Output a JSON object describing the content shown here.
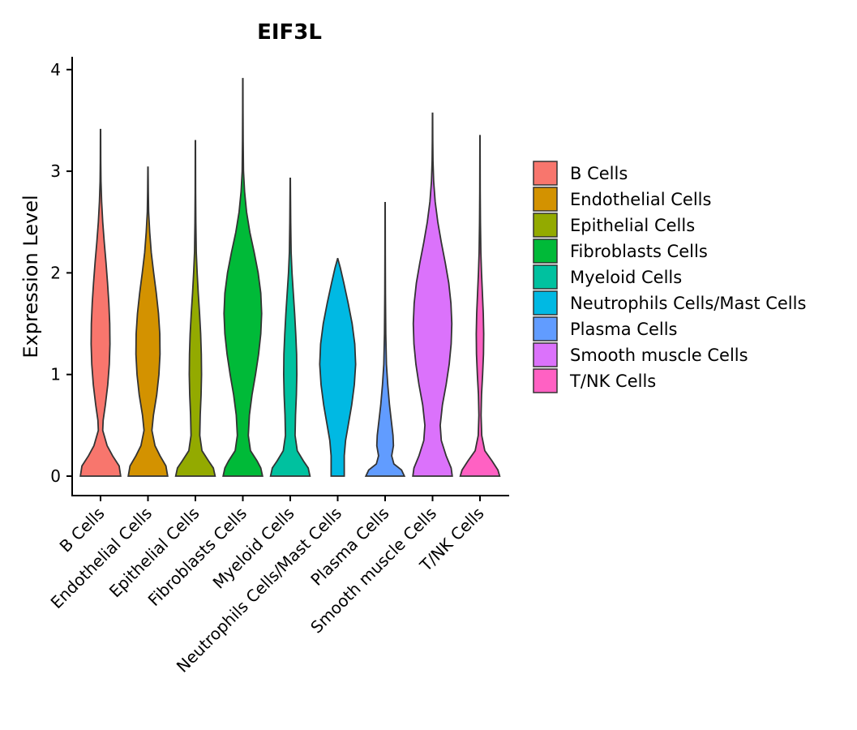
{
  "chart_data": {
    "type": "violin",
    "title": "EIF3L",
    "xlabel": "",
    "ylabel": "Expression Level",
    "ylim": [
      -0.2,
      4.1
    ],
    "yticks": [
      0,
      1,
      2,
      3,
      4
    ],
    "categories": [
      "B Cells",
      "Endothelial Cells",
      "Epithelial Cells",
      "Fibroblasts Cells",
      "Myeloid Cells",
      "Neutrophils Cells/Mast Cells",
      "Plasma Cells",
      "Smooth muscle Cells",
      "T/NK Cells"
    ],
    "colors": [
      "#F8766D",
      "#D39200",
      "#93AA00",
      "#00BA38",
      "#00C19F",
      "#00B9E3",
      "#619CFF",
      "#DB72FB",
      "#FF61C3"
    ],
    "legend": {
      "position": "right",
      "entries": [
        "B Cells",
        "Endothelial Cells",
        "Epithelial Cells",
        "Fibroblasts Cells",
        "Myeloid Cells",
        "Neutrophils Cells/Mast Cells",
        "Plasma Cells",
        "Smooth muscle Cells",
        "T/NK Cells"
      ]
    },
    "series": [
      {
        "name": "B Cells",
        "max": 3.41,
        "profile": [
          [
            0,
            0.92
          ],
          [
            0.1,
            0.85
          ],
          [
            0.2,
            0.55
          ],
          [
            0.3,
            0.3
          ],
          [
            0.45,
            0.1
          ],
          [
            0.55,
            0.12
          ],
          [
            0.7,
            0.22
          ],
          [
            0.9,
            0.33
          ],
          [
            1.1,
            0.4
          ],
          [
            1.3,
            0.43
          ],
          [
            1.5,
            0.42
          ],
          [
            1.7,
            0.38
          ],
          [
            1.9,
            0.32
          ],
          [
            2.1,
            0.25
          ],
          [
            2.3,
            0.17
          ],
          [
            2.5,
            0.1
          ],
          [
            2.7,
            0.05
          ],
          [
            2.9,
            0.02
          ],
          [
            3.1,
            0.01
          ],
          [
            3.41,
            0.005
          ]
        ]
      },
      {
        "name": "Endothelial Cells",
        "max": 3.04,
        "profile": [
          [
            0,
            0.9
          ],
          [
            0.1,
            0.82
          ],
          [
            0.2,
            0.55
          ],
          [
            0.3,
            0.32
          ],
          [
            0.45,
            0.18
          ],
          [
            0.6,
            0.25
          ],
          [
            0.8,
            0.4
          ],
          [
            1.0,
            0.5
          ],
          [
            1.2,
            0.55
          ],
          [
            1.4,
            0.54
          ],
          [
            1.6,
            0.48
          ],
          [
            1.8,
            0.38
          ],
          [
            2.0,
            0.26
          ],
          [
            2.2,
            0.15
          ],
          [
            2.4,
            0.08
          ],
          [
            2.6,
            0.03
          ],
          [
            2.8,
            0.015
          ],
          [
            3.04,
            0.005
          ]
        ]
      },
      {
        "name": "Epithelial Cells",
        "max": 3.3,
        "profile": [
          [
            0,
            0.9
          ],
          [
            0.08,
            0.82
          ],
          [
            0.15,
            0.6
          ],
          [
            0.25,
            0.3
          ],
          [
            0.4,
            0.2
          ],
          [
            0.6,
            0.22
          ],
          [
            0.8,
            0.26
          ],
          [
            1.0,
            0.28
          ],
          [
            1.2,
            0.27
          ],
          [
            1.4,
            0.24
          ],
          [
            1.6,
            0.19
          ],
          [
            1.8,
            0.13
          ],
          [
            2.0,
            0.08
          ],
          [
            2.2,
            0.04
          ],
          [
            2.5,
            0.02
          ],
          [
            2.8,
            0.01
          ],
          [
            3.3,
            0.005
          ]
        ]
      },
      {
        "name": "Fibroblasts Cells",
        "max": 3.91,
        "profile": [
          [
            0,
            0.9
          ],
          [
            0.08,
            0.82
          ],
          [
            0.15,
            0.65
          ],
          [
            0.25,
            0.35
          ],
          [
            0.4,
            0.25
          ],
          [
            0.6,
            0.3
          ],
          [
            0.8,
            0.42
          ],
          [
            1.0,
            0.58
          ],
          [
            1.2,
            0.72
          ],
          [
            1.4,
            0.82
          ],
          [
            1.6,
            0.86
          ],
          [
            1.8,
            0.82
          ],
          [
            2.0,
            0.7
          ],
          [
            2.2,
            0.52
          ],
          [
            2.4,
            0.32
          ],
          [
            2.6,
            0.17
          ],
          [
            2.8,
            0.08
          ],
          [
            3.0,
            0.03
          ],
          [
            3.3,
            0.015
          ],
          [
            3.6,
            0.008
          ],
          [
            3.91,
            0.005
          ]
        ]
      },
      {
        "name": "Myeloid Cells",
        "max": 2.93,
        "profile": [
          [
            0,
            0.9
          ],
          [
            0.08,
            0.82
          ],
          [
            0.15,
            0.6
          ],
          [
            0.25,
            0.32
          ],
          [
            0.4,
            0.22
          ],
          [
            0.6,
            0.24
          ],
          [
            0.8,
            0.28
          ],
          [
            1.0,
            0.3
          ],
          [
            1.2,
            0.29
          ],
          [
            1.4,
            0.25
          ],
          [
            1.6,
            0.2
          ],
          [
            1.8,
            0.14
          ],
          [
            2.0,
            0.08
          ],
          [
            2.2,
            0.04
          ],
          [
            2.5,
            0.02
          ],
          [
            2.93,
            0.005
          ]
        ]
      },
      {
        "name": "Neutrophils Cells/Mast Cells",
        "max": 2.14,
        "profile": [
          [
            0,
            0.3
          ],
          [
            0.2,
            0.3
          ],
          [
            0.35,
            0.36
          ],
          [
            0.5,
            0.48
          ],
          [
            0.7,
            0.64
          ],
          [
            0.9,
            0.76
          ],
          [
            1.1,
            0.82
          ],
          [
            1.3,
            0.78
          ],
          [
            1.5,
            0.66
          ],
          [
            1.7,
            0.48
          ],
          [
            1.9,
            0.28
          ],
          [
            2.05,
            0.12
          ],
          [
            2.14,
            0.005
          ]
        ]
      },
      {
        "name": "Plasma Cells",
        "max": 2.69,
        "profile": [
          [
            0,
            0.88
          ],
          [
            0.06,
            0.75
          ],
          [
            0.12,
            0.4
          ],
          [
            0.2,
            0.3
          ],
          [
            0.3,
            0.38
          ],
          [
            0.4,
            0.36
          ],
          [
            0.55,
            0.28
          ],
          [
            0.7,
            0.2
          ],
          [
            0.9,
            0.12
          ],
          [
            1.1,
            0.06
          ],
          [
            1.4,
            0.03
          ],
          [
            1.8,
            0.015
          ],
          [
            2.2,
            0.008
          ],
          [
            2.69,
            0.004
          ]
        ]
      },
      {
        "name": "Smooth muscle Cells",
        "max": 3.57,
        "profile": [
          [
            0,
            0.9
          ],
          [
            0.08,
            0.85
          ],
          [
            0.2,
            0.62
          ],
          [
            0.35,
            0.4
          ],
          [
            0.5,
            0.35
          ],
          [
            0.7,
            0.45
          ],
          [
            0.9,
            0.62
          ],
          [
            1.1,
            0.76
          ],
          [
            1.3,
            0.85
          ],
          [
            1.5,
            0.88
          ],
          [
            1.7,
            0.84
          ],
          [
            1.9,
            0.74
          ],
          [
            2.1,
            0.58
          ],
          [
            2.3,
            0.4
          ],
          [
            2.5,
            0.24
          ],
          [
            2.7,
            0.12
          ],
          [
            2.9,
            0.05
          ],
          [
            3.1,
            0.02
          ],
          [
            3.3,
            0.01
          ],
          [
            3.57,
            0.005
          ]
        ]
      },
      {
        "name": "T/NK Cells",
        "max": 3.35,
        "profile": [
          [
            0,
            0.9
          ],
          [
            0.06,
            0.82
          ],
          [
            0.15,
            0.55
          ],
          [
            0.25,
            0.22
          ],
          [
            0.4,
            0.08
          ],
          [
            0.6,
            0.05
          ],
          [
            0.8,
            0.07
          ],
          [
            1.0,
            0.12
          ],
          [
            1.2,
            0.16
          ],
          [
            1.4,
            0.17
          ],
          [
            1.6,
            0.15
          ],
          [
            1.8,
            0.11
          ],
          [
            2.0,
            0.07
          ],
          [
            2.2,
            0.04
          ],
          [
            2.5,
            0.02
          ],
          [
            2.8,
            0.01
          ],
          [
            3.35,
            0.004
          ]
        ]
      }
    ]
  }
}
